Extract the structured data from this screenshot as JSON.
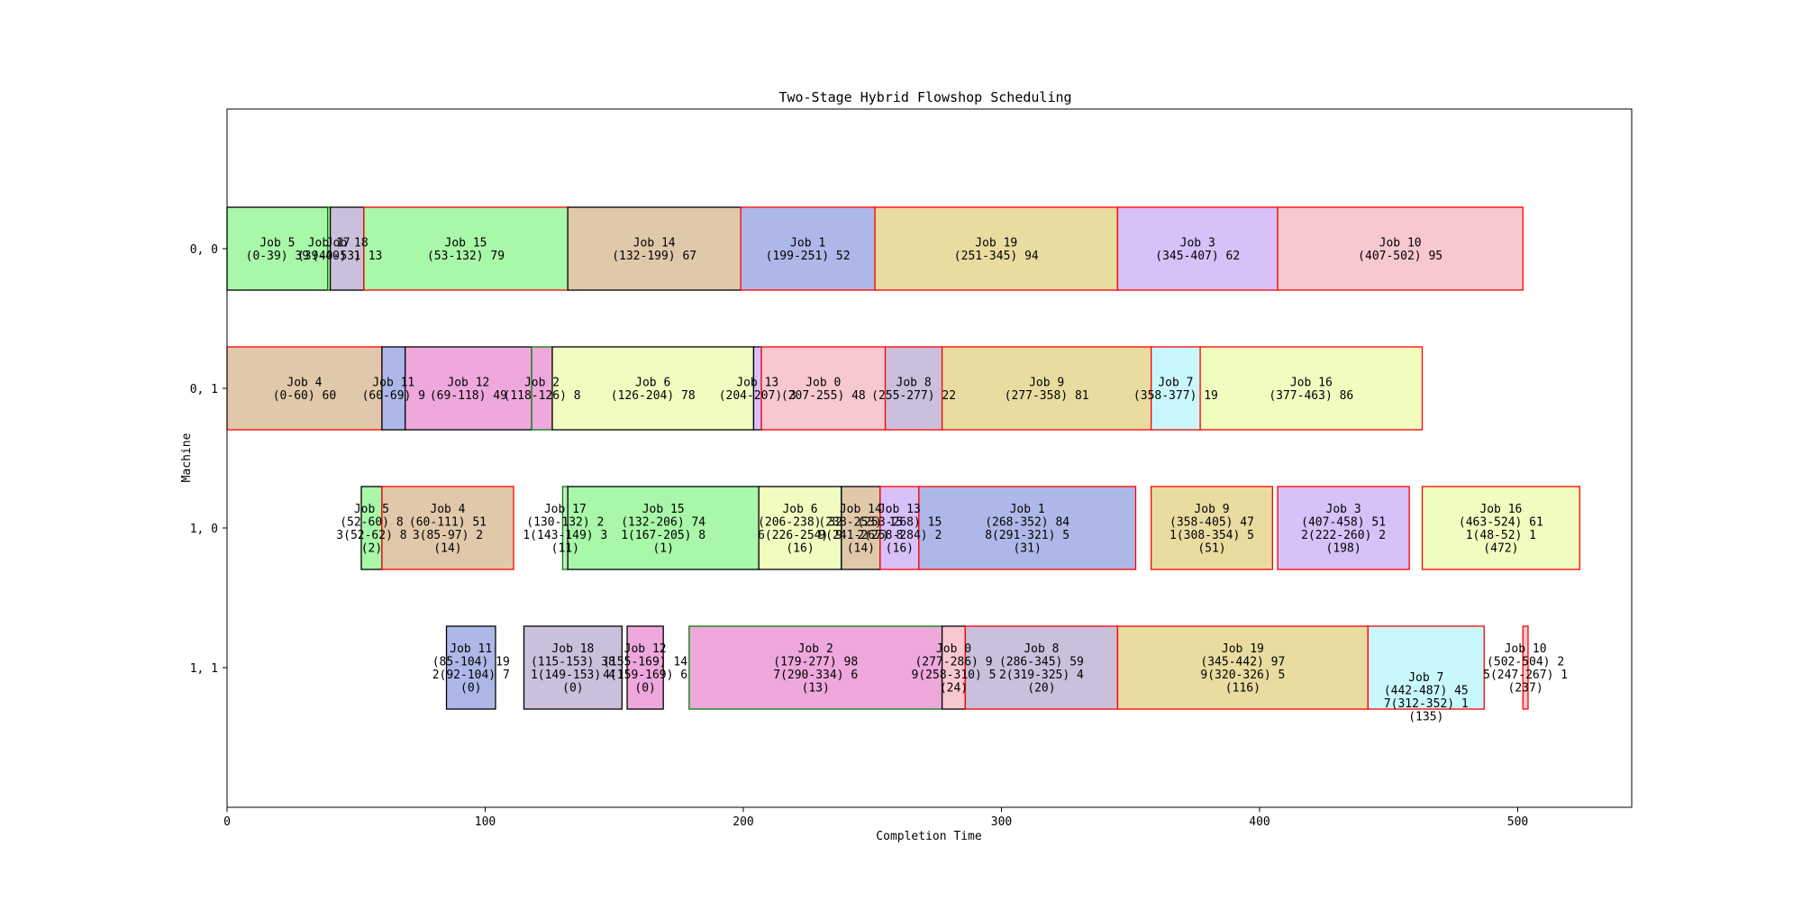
{
  "chart_data": {
    "type": "gantt",
    "title": "Two-Stage Hybrid Flowshop Scheduling",
    "xlabel": "Completion Time",
    "ylabel": "Machine",
    "xlim": [
      0,
      545
    ],
    "xticks": [
      "0",
      "100",
      "200",
      "300",
      "400",
      "500"
    ],
    "machines": [
      "0, 0",
      "0, 1",
      "1, 0",
      "1, 1"
    ],
    "colors": {
      "outline_late": "#ff0000",
      "outline_ontime": "#000000",
      "outline_early": "#00aa00"
    },
    "tasks": [
      {
        "machine": 0,
        "start": 0,
        "end": 39,
        "fill": "#a9f7a9",
        "edge": "#000000",
        "lines": [
          "Job 5",
          "(0-39) 39"
        ]
      },
      {
        "machine": 0,
        "start": 39,
        "end": 40,
        "fill": "#c0f0c0",
        "edge": "#008000",
        "lines": [
          "Job 17",
          "(39-40) 1"
        ]
      },
      {
        "machine": 0,
        "start": 40,
        "end": 53,
        "fill": "#cac0dc",
        "edge": "#000000",
        "lines": [
          "Job 18",
          "(40-53) 13"
        ]
      },
      {
        "machine": 0,
        "start": 53,
        "end": 132,
        "fill": "#a9f7a9",
        "edge": "#ff0000",
        "lines": [
          "Job 15",
          "(53-132) 79"
        ]
      },
      {
        "machine": 0,
        "start": 132,
        "end": 199,
        "fill": "#e0c8aa",
        "edge": "#000000",
        "lines": [
          "Job 14",
          "(132-199) 67"
        ]
      },
      {
        "machine": 0,
        "start": 199,
        "end": 251,
        "fill": "#aeb8e8",
        "edge": "#ff0000",
        "lines": [
          "Job 1",
          "(199-251) 52"
        ]
      },
      {
        "machine": 0,
        "start": 251,
        "end": 345,
        "fill": "#e8dca0",
        "edge": "#ff0000",
        "lines": [
          "Job 19",
          "(251-345) 94"
        ]
      },
      {
        "machine": 0,
        "start": 345,
        "end": 407,
        "fill": "#d8c0f8",
        "edge": "#ff0000",
        "lines": [
          "Job 3",
          "(345-407) 62"
        ]
      },
      {
        "machine": 0,
        "start": 407,
        "end": 502,
        "fill": "#f8c8d0",
        "edge": "#ff0000",
        "lines": [
          "Job 10",
          "(407-502) 95"
        ]
      },
      {
        "machine": 1,
        "start": 0,
        "end": 60,
        "fill": "#e0c8aa",
        "edge": "#ff0000",
        "lines": [
          "Job 4",
          "(0-60) 60"
        ]
      },
      {
        "machine": 1,
        "start": 60,
        "end": 69,
        "fill": "#aeb8e8",
        "edge": "#000000",
        "lines": [
          "Job 11",
          "(60-69) 9"
        ]
      },
      {
        "machine": 1,
        "start": 69,
        "end": 118,
        "fill": "#eea8dc",
        "edge": "#000000",
        "lines": [
          "Job 12",
          "(69-118) 49"
        ]
      },
      {
        "machine": 1,
        "start": 118,
        "end": 126,
        "fill": "#eea8dc",
        "edge": "#008000",
        "lines": [
          "Job 2",
          "(118-126) 8"
        ]
      },
      {
        "machine": 1,
        "start": 126,
        "end": 204,
        "fill": "#f0fcc0",
        "edge": "#000000",
        "lines": [
          "Job 6",
          "(126-204) 78"
        ]
      },
      {
        "machine": 1,
        "start": 204,
        "end": 207,
        "fill": "#d8c0f8",
        "edge": "#000000",
        "lines": [
          "Job 13",
          "(204-207) 3"
        ]
      },
      {
        "machine": 1,
        "start": 207,
        "end": 255,
        "fill": "#f8c8d0",
        "edge": "#ff0000",
        "lines": [
          "Job 0",
          "(207-255) 48"
        ]
      },
      {
        "machine": 1,
        "start": 255,
        "end": 277,
        "fill": "#cac0dc",
        "edge": "#ff0000",
        "lines": [
          "Job 8",
          "(255-277) 22"
        ]
      },
      {
        "machine": 1,
        "start": 277,
        "end": 358,
        "fill": "#e8dca0",
        "edge": "#ff0000",
        "lines": [
          "Job 9",
          "(277-358) 81"
        ]
      },
      {
        "machine": 1,
        "start": 358,
        "end": 377,
        "fill": "#c8f8fc",
        "edge": "#ff0000",
        "lines": [
          "Job 7",
          "(358-377) 19"
        ]
      },
      {
        "machine": 1,
        "start": 377,
        "end": 463,
        "fill": "#f0fcc0",
        "edge": "#ff0000",
        "lines": [
          "Job 16",
          "(377-463) 86"
        ]
      },
      {
        "machine": 2,
        "start": 52,
        "end": 60,
        "fill": "#a9f7a9",
        "edge": "#000000",
        "lines": [
          "Job 5",
          "(52-60) 8",
          "3(52-62) 8",
          "(2)"
        ]
      },
      {
        "machine": 2,
        "start": 60,
        "end": 111,
        "fill": "#e0c8aa",
        "edge": "#ff0000",
        "lines": [
          "Job 4",
          "(60-111) 51",
          "3(85-97) 2",
          "(14)"
        ]
      },
      {
        "machine": 2,
        "start": 130,
        "end": 132,
        "fill": "#c0f0c0",
        "edge": "#008000",
        "lines": [
          "Job 17",
          "(130-132) 2",
          "1(143-149) 3",
          "(11)"
        ]
      },
      {
        "machine": 2,
        "start": 132,
        "end": 206,
        "fill": "#a9f7a9",
        "edge": "#000000",
        "lines": [
          "Job 15",
          "(132-206) 74",
          "1(167-205) 8",
          "(1)"
        ]
      },
      {
        "machine": 2,
        "start": 206,
        "end": 238,
        "fill": "#f0fcc0",
        "edge": "#000000",
        "lines": [
          "Job 6",
          "(206-238) 32",
          "6(226-254) 9",
          "(16)"
        ]
      },
      {
        "machine": 2,
        "start": 238,
        "end": 253,
        "fill": "#e0c8aa",
        "edge": "#000000",
        "lines": [
          "Job 14",
          "(238-253) 15",
          "9(241-267) 8",
          "(14)"
        ]
      },
      {
        "machine": 2,
        "start": 253,
        "end": 268,
        "fill": "#d8c0f8",
        "edge": "#ff0000",
        "lines": [
          "Job 13",
          "(253-268) 15",
          "2(258-284) 2",
          "(16)"
        ]
      },
      {
        "machine": 2,
        "start": 268,
        "end": 352,
        "fill": "#aeb8e8",
        "edge": "#ff0000",
        "lines": [
          "Job 1",
          "(268-352) 84",
          "8(291-321) 5",
          "(31)"
        ]
      },
      {
        "machine": 2,
        "start": 358,
        "end": 405,
        "fill": "#e8dca0",
        "edge": "#ff0000",
        "lines": [
          "Job 9",
          "(358-405) 47",
          "1(308-354) 5",
          "(51)"
        ]
      },
      {
        "machine": 2,
        "start": 407,
        "end": 458,
        "fill": "#d8c0f8",
        "edge": "#ff0000",
        "lines": [
          "Job 3",
          "(407-458) 51",
          "2(222-260) 2",
          "(198)"
        ]
      },
      {
        "machine": 2,
        "start": 463,
        "end": 524,
        "fill": "#f0fcc0",
        "edge": "#ff0000",
        "lines": [
          "Job 16",
          "(463-524) 61",
          "1(48-52) 1",
          "(472)"
        ]
      },
      {
        "machine": 3,
        "start": 85,
        "end": 104,
        "fill": "#aeb8e8",
        "edge": "#000000",
        "lines": [
          "Job 11",
          "(85-104) 19",
          "2(92-104) 7",
          "(0)"
        ]
      },
      {
        "machine": 3,
        "start": 115,
        "end": 153,
        "fill": "#cac0dc",
        "edge": "#000000",
        "lines": [
          "Job 18",
          "(115-153) 38",
          "1(149-153) 4",
          "(0)"
        ]
      },
      {
        "machine": 3,
        "start": 155,
        "end": 169,
        "fill": "#eea8dc",
        "edge": "#000000",
        "lines": [
          "Job 12",
          "(155-169) 14",
          "4(159-169) 6",
          "(0)"
        ]
      },
      {
        "machine": 3,
        "start": 179,
        "end": 277,
        "fill": "#eea8dc",
        "edge": "#008000",
        "lines": [
          "Job 2",
          "(179-277) 98",
          "7(290-334) 6",
          "(13)"
        ]
      },
      {
        "machine": 3,
        "start": 277,
        "end": 286,
        "fill": "#f8c8d0",
        "edge": "#000000",
        "lines": [
          "Job 0",
          "(277-286) 9",
          "9(258-310) 5",
          "(24)"
        ]
      },
      {
        "machine": 3,
        "start": 286,
        "end": 345,
        "fill": "#cac0dc",
        "edge": "#ff0000",
        "lines": [
          "Job 8",
          "(286-345) 59",
          "2(319-325) 4",
          "(20)"
        ]
      },
      {
        "machine": 3,
        "start": 345,
        "end": 442,
        "fill": "#e8dca0",
        "edge": "#ff0000",
        "lines": [
          "Job 19",
          "(345-442) 97",
          "9(320-326) 5",
          "(116)"
        ]
      },
      {
        "machine": 3,
        "start": 442,
        "end": 487,
        "fill": "#c8f8fc",
        "edge": "#ff0000",
        "lines": [
          "Job 7",
          "(442-487) 45",
          "7(312-352) 1",
          "(135)"
        ],
        "textOffset": 0.35
      },
      {
        "machine": 3,
        "start": 502,
        "end": 504,
        "fill": "#f8c8d0",
        "edge": "#ff0000",
        "lines": [
          "Job 10",
          "(502-504) 2",
          "5(247-267) 1",
          "(237)"
        ]
      }
    ]
  }
}
